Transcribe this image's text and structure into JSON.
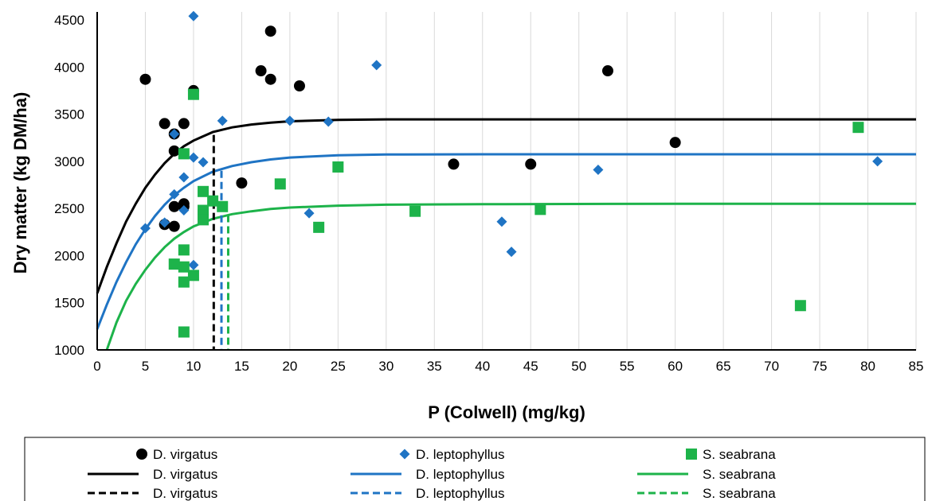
{
  "colors": {
    "virgatus": "#000000",
    "leptophyllus": "#1f74c4",
    "seabrana": "#1db34a"
  },
  "chart_data": {
    "type": "scatter",
    "title": "",
    "xlabel": "P (Colwell) (mg/kg)",
    "ylabel": "Dry matter (kg DM/ha)",
    "xlim": [
      0,
      85
    ],
    "ylim": [
      1000,
      4500
    ],
    "x_ticks": [
      0,
      5,
      10,
      15,
      20,
      25,
      30,
      35,
      40,
      45,
      50,
      55,
      60,
      65,
      70,
      75,
      80,
      85
    ],
    "y_ticks": [
      1000,
      1500,
      2000,
      2500,
      3000,
      3500,
      4000,
      4500
    ],
    "grid": "vertical",
    "legend_position": "bottom",
    "points": [
      {
        "name": "D. virgatus",
        "marker": "circle",
        "color": "#000000",
        "data": [
          [
            5,
            3870
          ],
          [
            7,
            3400
          ],
          [
            7,
            2330
          ],
          [
            8,
            3290
          ],
          [
            8,
            3110
          ],
          [
            8,
            2520
          ],
          [
            8,
            2310
          ],
          [
            9,
            3400
          ],
          [
            9,
            2550
          ],
          [
            9,
            2520
          ],
          [
            10,
            3750
          ],
          [
            15,
            2770
          ],
          [
            17,
            3960
          ],
          [
            18,
            4380
          ],
          [
            18,
            3870
          ],
          [
            21,
            3800
          ],
          [
            37,
            2970
          ],
          [
            45,
            2970
          ],
          [
            53,
            3960
          ],
          [
            60,
            3200
          ]
        ]
      },
      {
        "name": "D. leptophyllus",
        "marker": "diamond",
        "color": "#1f74c4",
        "data": [
          [
            5,
            2290
          ],
          [
            7,
            2350
          ],
          [
            8,
            3290
          ],
          [
            8,
            2650
          ],
          [
            9,
            2830
          ],
          [
            9,
            2480
          ],
          [
            10,
            4540
          ],
          [
            10,
            3040
          ],
          [
            10,
            1900
          ],
          [
            11,
            2990
          ],
          [
            12,
            2580
          ],
          [
            13,
            3430
          ],
          [
            20,
            3430
          ],
          [
            22,
            2450
          ],
          [
            24,
            3420
          ],
          [
            29,
            4020
          ],
          [
            42,
            2360
          ],
          [
            43,
            2040
          ],
          [
            52,
            2910
          ],
          [
            81,
            3000
          ]
        ]
      },
      {
        "name": "S. seabrana",
        "marker": "square",
        "color": "#1db34a",
        "data": [
          [
            8,
            1910
          ],
          [
            9,
            3080
          ],
          [
            9,
            2060
          ],
          [
            9,
            1880
          ],
          [
            9,
            1720
          ],
          [
            9,
            1190
          ],
          [
            10,
            3710
          ],
          [
            10,
            1790
          ],
          [
            11,
            2680
          ],
          [
            11,
            2480
          ],
          [
            11,
            2430
          ],
          [
            11,
            2380
          ],
          [
            12,
            2580
          ],
          [
            13,
            2520
          ],
          [
            19,
            2760
          ],
          [
            23,
            2300
          ],
          [
            25,
            2940
          ],
          [
            33,
            2470
          ],
          [
            46,
            2490
          ],
          [
            73,
            1470
          ],
          [
            79,
            3360
          ]
        ]
      }
    ],
    "curves": [
      {
        "name": "D. virgatus",
        "color": "#000000",
        "data": [
          [
            0,
            1600
          ],
          [
            1,
            1880
          ],
          [
            2,
            2130
          ],
          [
            3,
            2360
          ],
          [
            4,
            2550
          ],
          [
            5,
            2720
          ],
          [
            6,
            2860
          ],
          [
            7,
            2980
          ],
          [
            8,
            3080
          ],
          [
            9,
            3160
          ],
          [
            10,
            3220
          ],
          [
            12,
            3310
          ],
          [
            14,
            3360
          ],
          [
            16,
            3390
          ],
          [
            18,
            3410
          ],
          [
            20,
            3425
          ],
          [
            25,
            3440
          ],
          [
            30,
            3445
          ],
          [
            40,
            3445
          ],
          [
            60,
            3445
          ],
          [
            85,
            3445
          ]
        ]
      },
      {
        "name": "D. leptophyllus",
        "color": "#1f74c4",
        "data": [
          [
            0,
            1220
          ],
          [
            1,
            1480
          ],
          [
            2,
            1720
          ],
          [
            3,
            1930
          ],
          [
            4,
            2120
          ],
          [
            5,
            2280
          ],
          [
            6,
            2420
          ],
          [
            7,
            2540
          ],
          [
            8,
            2640
          ],
          [
            9,
            2720
          ],
          [
            10,
            2790
          ],
          [
            12,
            2890
          ],
          [
            14,
            2950
          ],
          [
            16,
            2990
          ],
          [
            18,
            3020
          ],
          [
            20,
            3040
          ],
          [
            25,
            3065
          ],
          [
            30,
            3072
          ],
          [
            40,
            3075
          ],
          [
            60,
            3075
          ],
          [
            85,
            3075
          ]
        ]
      },
      {
        "name": "S. seabrana",
        "color": "#1db34a",
        "data": [
          [
            1,
            1000
          ],
          [
            2,
            1290
          ],
          [
            3,
            1520
          ],
          [
            4,
            1700
          ],
          [
            5,
            1850
          ],
          [
            6,
            1980
          ],
          [
            7,
            2090
          ],
          [
            8,
            2180
          ],
          [
            9,
            2250
          ],
          [
            10,
            2310
          ],
          [
            12,
            2390
          ],
          [
            14,
            2440
          ],
          [
            16,
            2470
          ],
          [
            18,
            2495
          ],
          [
            20,
            2510
          ],
          [
            25,
            2530
          ],
          [
            30,
            2540
          ],
          [
            40,
            2545
          ],
          [
            60,
            2550
          ],
          [
            85,
            2550
          ]
        ]
      }
    ],
    "thresholds": [
      {
        "name": "D. virgatus",
        "color": "#000000",
        "x": 12.1,
        "y": 3280
      },
      {
        "name": "D. leptophyllus",
        "color": "#1f74c4",
        "x": 12.9,
        "y": 2900
      },
      {
        "name": "S. seabrana",
        "color": "#1db34a",
        "x": 13.6,
        "y": 2430
      }
    ],
    "legend": {
      "rows": [
        [
          "D. virgatus",
          "D. leptophyllus",
          "S. seabrana"
        ],
        [
          "D. virgatus",
          "D. leptophyllus",
          "S. seabrana"
        ],
        [
          "D. virgatus",
          "D. leptophyllus",
          "S. seabrana"
        ]
      ]
    }
  }
}
